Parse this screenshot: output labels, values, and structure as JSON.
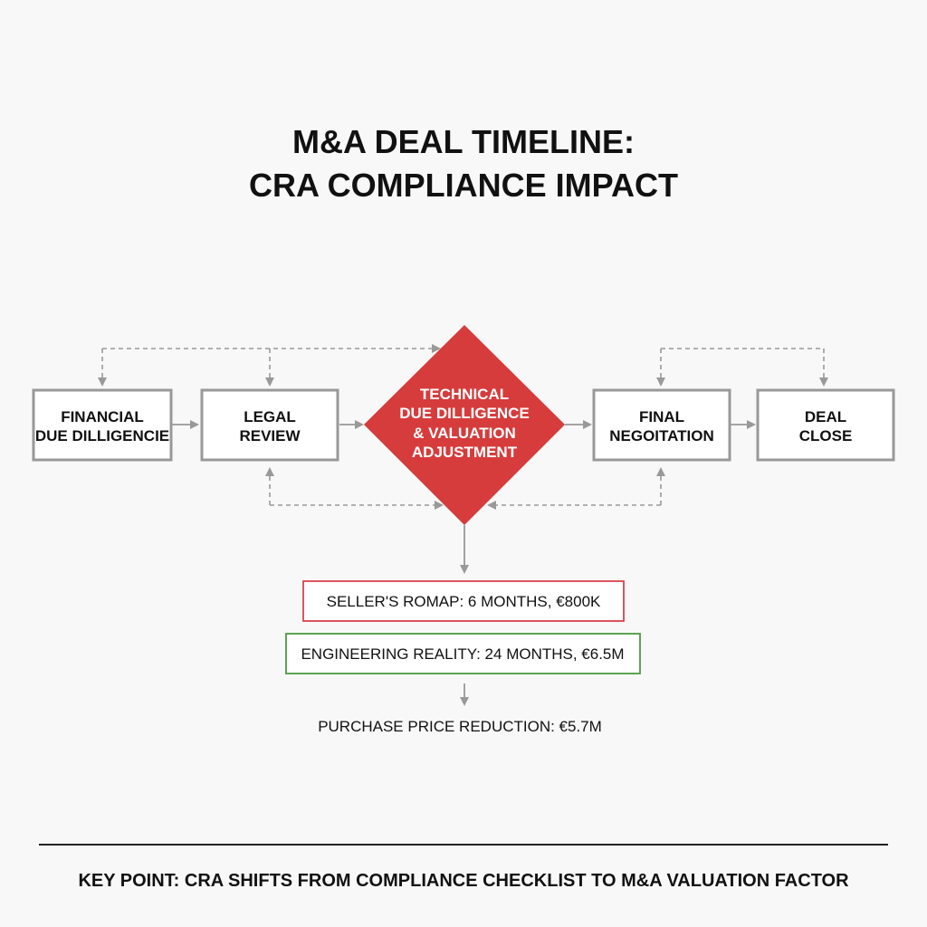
{
  "title": {
    "line1": "M&A DEAL TIMELINE:",
    "line2": "CRA COMPLIANCE IMPACT"
  },
  "nodes": {
    "financial": {
      "line1": "FINANCIAL",
      "line2": "DUE DILLIGENCIE"
    },
    "legal": {
      "line1": "LEGAL",
      "line2": "REVIEW"
    },
    "technical": {
      "line1": "TECHNICAL",
      "line2": "DUE DILLIGENCE",
      "line3": "& VALUATION",
      "line4": "ADJUSTMENT"
    },
    "negotiation": {
      "line1": "FINAL",
      "line2": "NEGOITATION"
    },
    "close": {
      "line1": "DEAL",
      "line2": "CLOSE"
    }
  },
  "estimates": {
    "seller": "SELLER'S ROMAP: 6 MONTHS, €800K",
    "engineering": "ENGINEERING REALITY: 24 MONTHS, €6.5M",
    "result": "PURCHASE PRICE REDUCTION: €5.7M"
  },
  "key_point": "KEY POINT: CRA SHIFTS FROM COMPLIANCE CHECKLIST TO M&A VALUATION FACTOR",
  "colors": {
    "accent_red": "#d63c3c",
    "seller_border": "#d9444a",
    "engineering_border": "#4a9a3f",
    "box_border": "#999999",
    "connector": "#999999"
  }
}
